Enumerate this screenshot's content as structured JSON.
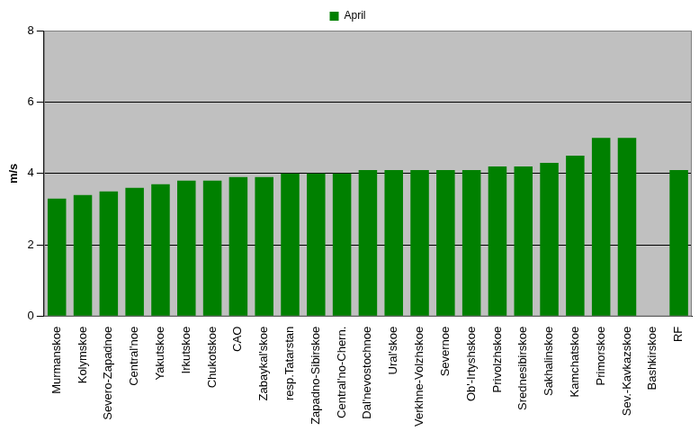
{
  "chart_data": {
    "type": "bar",
    "y_label": "m/s",
    "categories": [
      "Murmanskoe",
      "Kolymskoe",
      "Severo-Zapadnoe",
      "Central'noe",
      "Yakutskoe",
      "Irkutskoe",
      "Chukotskoe",
      "CAO",
      "Zabaykal'skoe",
      "resp.Tatarstan",
      "Zapadno-Sibirskoe",
      "Central'no-Chern.",
      "Dal'nevostochnoe",
      "Ural'skoe",
      "Verkhne-Volzhskoe",
      "Severnoe",
      "Ob'-Irtyshskoe",
      "Privolzhskoe",
      "Srednesibirskoe",
      "Sakhalinskoe",
      "Kamchatskoe",
      "Primorskoe",
      "Sev.-Kavkazskoe",
      "Bashkirskoe",
      "RF"
    ],
    "series": [
      {
        "name": "April",
        "color": "#008000",
        "values": [
          3.3,
          3.4,
          3.5,
          3.6,
          3.7,
          3.8,
          3.8,
          3.9,
          3.9,
          4.0,
          4.0,
          4.0,
          4.1,
          4.1,
          4.1,
          4.1,
          4.1,
          4.2,
          4.2,
          4.3,
          4.5,
          5.0,
          5.0,
          null,
          4.1
        ]
      }
    ],
    "ylim": [
      0,
      8
    ],
    "yticks": [
      0,
      2,
      4,
      6,
      8
    ],
    "grid": true,
    "legend": "top"
  }
}
